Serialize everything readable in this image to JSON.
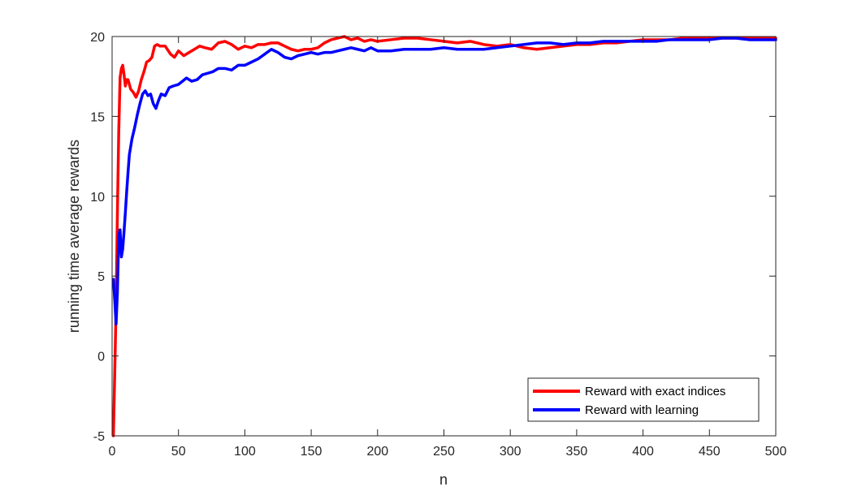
{
  "chart_data": {
    "type": "line",
    "title": "",
    "xlabel": "n",
    "ylabel": "running time average rewards",
    "xlim": [
      0,
      500
    ],
    "ylim": [
      -5,
      20
    ],
    "xticks": [
      0,
      50,
      100,
      150,
      200,
      250,
      300,
      350,
      400,
      450,
      500
    ],
    "yticks": [
      -5,
      0,
      5,
      10,
      15,
      20
    ],
    "grid": false,
    "legend": "bottom-right",
    "series": [
      {
        "name": "Reward with exact indices",
        "color": "#ff0000",
        "points": [
          [
            1,
            -5
          ],
          [
            2,
            -1
          ],
          [
            3,
            3
          ],
          [
            4,
            9
          ],
          [
            5,
            14
          ],
          [
            6,
            17.4
          ],
          [
            7,
            18.0
          ],
          [
            8,
            18.2
          ],
          [
            9,
            17.6
          ],
          [
            10,
            16.9
          ],
          [
            11,
            17.3
          ],
          [
            12,
            17.3
          ],
          [
            14,
            16.7
          ],
          [
            16,
            16.5
          ],
          [
            18,
            16.2
          ],
          [
            20,
            16.6
          ],
          [
            22,
            17.3
          ],
          [
            24,
            17.8
          ],
          [
            26,
            18.4
          ],
          [
            28,
            18.5
          ],
          [
            30,
            18.7
          ],
          [
            32,
            19.4
          ],
          [
            34,
            19.5
          ],
          [
            36,
            19.4
          ],
          [
            40,
            19.4
          ],
          [
            44,
            18.9
          ],
          [
            47,
            18.7
          ],
          [
            50,
            19.1
          ],
          [
            54,
            18.8
          ],
          [
            58,
            19.0
          ],
          [
            62,
            19.2
          ],
          [
            66,
            19.4
          ],
          [
            70,
            19.3
          ],
          [
            75,
            19.2
          ],
          [
            80,
            19.6
          ],
          [
            85,
            19.7
          ],
          [
            90,
            19.5
          ],
          [
            95,
            19.2
          ],
          [
            100,
            19.4
          ],
          [
            105,
            19.3
          ],
          [
            110,
            19.5
          ],
          [
            115,
            19.5
          ],
          [
            120,
            19.6
          ],
          [
            125,
            19.6
          ],
          [
            130,
            19.4
          ],
          [
            135,
            19.2
          ],
          [
            140,
            19.1
          ],
          [
            145,
            19.2
          ],
          [
            150,
            19.2
          ],
          [
            155,
            19.3
          ],
          [
            160,
            19.6
          ],
          [
            165,
            19.8
          ],
          [
            170,
            19.9
          ],
          [
            175,
            20.0
          ],
          [
            180,
            19.8
          ],
          [
            185,
            19.9
          ],
          [
            190,
            19.7
          ],
          [
            195,
            19.8
          ],
          [
            200,
            19.7
          ],
          [
            210,
            19.8
          ],
          [
            220,
            19.9
          ],
          [
            230,
            19.9
          ],
          [
            240,
            19.8
          ],
          [
            250,
            19.7
          ],
          [
            260,
            19.6
          ],
          [
            270,
            19.7
          ],
          [
            280,
            19.5
          ],
          [
            290,
            19.4
          ],
          [
            300,
            19.5
          ],
          [
            310,
            19.3
          ],
          [
            320,
            19.2
          ],
          [
            330,
            19.3
          ],
          [
            340,
            19.4
          ],
          [
            350,
            19.5
          ],
          [
            360,
            19.5
          ],
          [
            370,
            19.6
          ],
          [
            380,
            19.6
          ],
          [
            390,
            19.7
          ],
          [
            400,
            19.8
          ],
          [
            410,
            19.8
          ],
          [
            420,
            19.8
          ],
          [
            430,
            19.9
          ],
          [
            440,
            19.9
          ],
          [
            450,
            19.9
          ],
          [
            460,
            19.9
          ],
          [
            470,
            19.9
          ],
          [
            480,
            19.9
          ],
          [
            490,
            19.9
          ],
          [
            500,
            19.9
          ]
        ]
      },
      {
        "name": "Reward with learning",
        "color": "#0000ff",
        "points": [
          [
            1,
            4.8
          ],
          [
            2,
            3.5
          ],
          [
            3,
            2.0
          ],
          [
            4,
            4.0
          ],
          [
            5,
            7.5
          ],
          [
            6,
            7.9
          ],
          [
            7,
            6.2
          ],
          [
            8,
            6.7
          ],
          [
            9,
            7.8
          ],
          [
            10,
            9.0
          ],
          [
            11,
            10.3
          ],
          [
            12,
            11.5
          ],
          [
            13,
            12.6
          ],
          [
            15,
            13.6
          ],
          [
            17,
            14.3
          ],
          [
            19,
            15.1
          ],
          [
            21,
            15.8
          ],
          [
            23,
            16.4
          ],
          [
            25,
            16.6
          ],
          [
            27,
            16.3
          ],
          [
            29,
            16.4
          ],
          [
            31,
            15.8
          ],
          [
            33,
            15.5
          ],
          [
            35,
            16.0
          ],
          [
            37,
            16.4
          ],
          [
            40,
            16.3
          ],
          [
            43,
            16.8
          ],
          [
            46,
            16.9
          ],
          [
            50,
            17.0
          ],
          [
            53,
            17.2
          ],
          [
            56,
            17.4
          ],
          [
            60,
            17.2
          ],
          [
            64,
            17.3
          ],
          [
            68,
            17.6
          ],
          [
            72,
            17.7
          ],
          [
            76,
            17.8
          ],
          [
            80,
            18.0
          ],
          [
            85,
            18.0
          ],
          [
            90,
            17.9
          ],
          [
            95,
            18.2
          ],
          [
            100,
            18.2
          ],
          [
            105,
            18.4
          ],
          [
            110,
            18.6
          ],
          [
            115,
            18.9
          ],
          [
            120,
            19.2
          ],
          [
            125,
            19.0
          ],
          [
            130,
            18.7
          ],
          [
            135,
            18.6
          ],
          [
            140,
            18.8
          ],
          [
            145,
            18.9
          ],
          [
            150,
            19.0
          ],
          [
            155,
            18.9
          ],
          [
            160,
            19.0
          ],
          [
            165,
            19.0
          ],
          [
            170,
            19.1
          ],
          [
            175,
            19.2
          ],
          [
            180,
            19.3
          ],
          [
            185,
            19.2
          ],
          [
            190,
            19.1
          ],
          [
            195,
            19.3
          ],
          [
            200,
            19.1
          ],
          [
            210,
            19.1
          ],
          [
            220,
            19.2
          ],
          [
            230,
            19.2
          ],
          [
            240,
            19.2
          ],
          [
            250,
            19.3
          ],
          [
            260,
            19.2
          ],
          [
            270,
            19.2
          ],
          [
            280,
            19.2
          ],
          [
            290,
            19.3
          ],
          [
            300,
            19.4
          ],
          [
            310,
            19.5
          ],
          [
            320,
            19.6
          ],
          [
            330,
            19.6
          ],
          [
            340,
            19.5
          ],
          [
            350,
            19.6
          ],
          [
            360,
            19.6
          ],
          [
            370,
            19.7
          ],
          [
            380,
            19.7
          ],
          [
            390,
            19.7
          ],
          [
            400,
            19.7
          ],
          [
            410,
            19.7
          ],
          [
            420,
            19.8
          ],
          [
            430,
            19.8
          ],
          [
            440,
            19.8
          ],
          [
            450,
            19.8
          ],
          [
            460,
            19.9
          ],
          [
            470,
            19.9
          ],
          [
            480,
            19.8
          ],
          [
            490,
            19.8
          ],
          [
            500,
            19.8
          ]
        ]
      }
    ]
  }
}
